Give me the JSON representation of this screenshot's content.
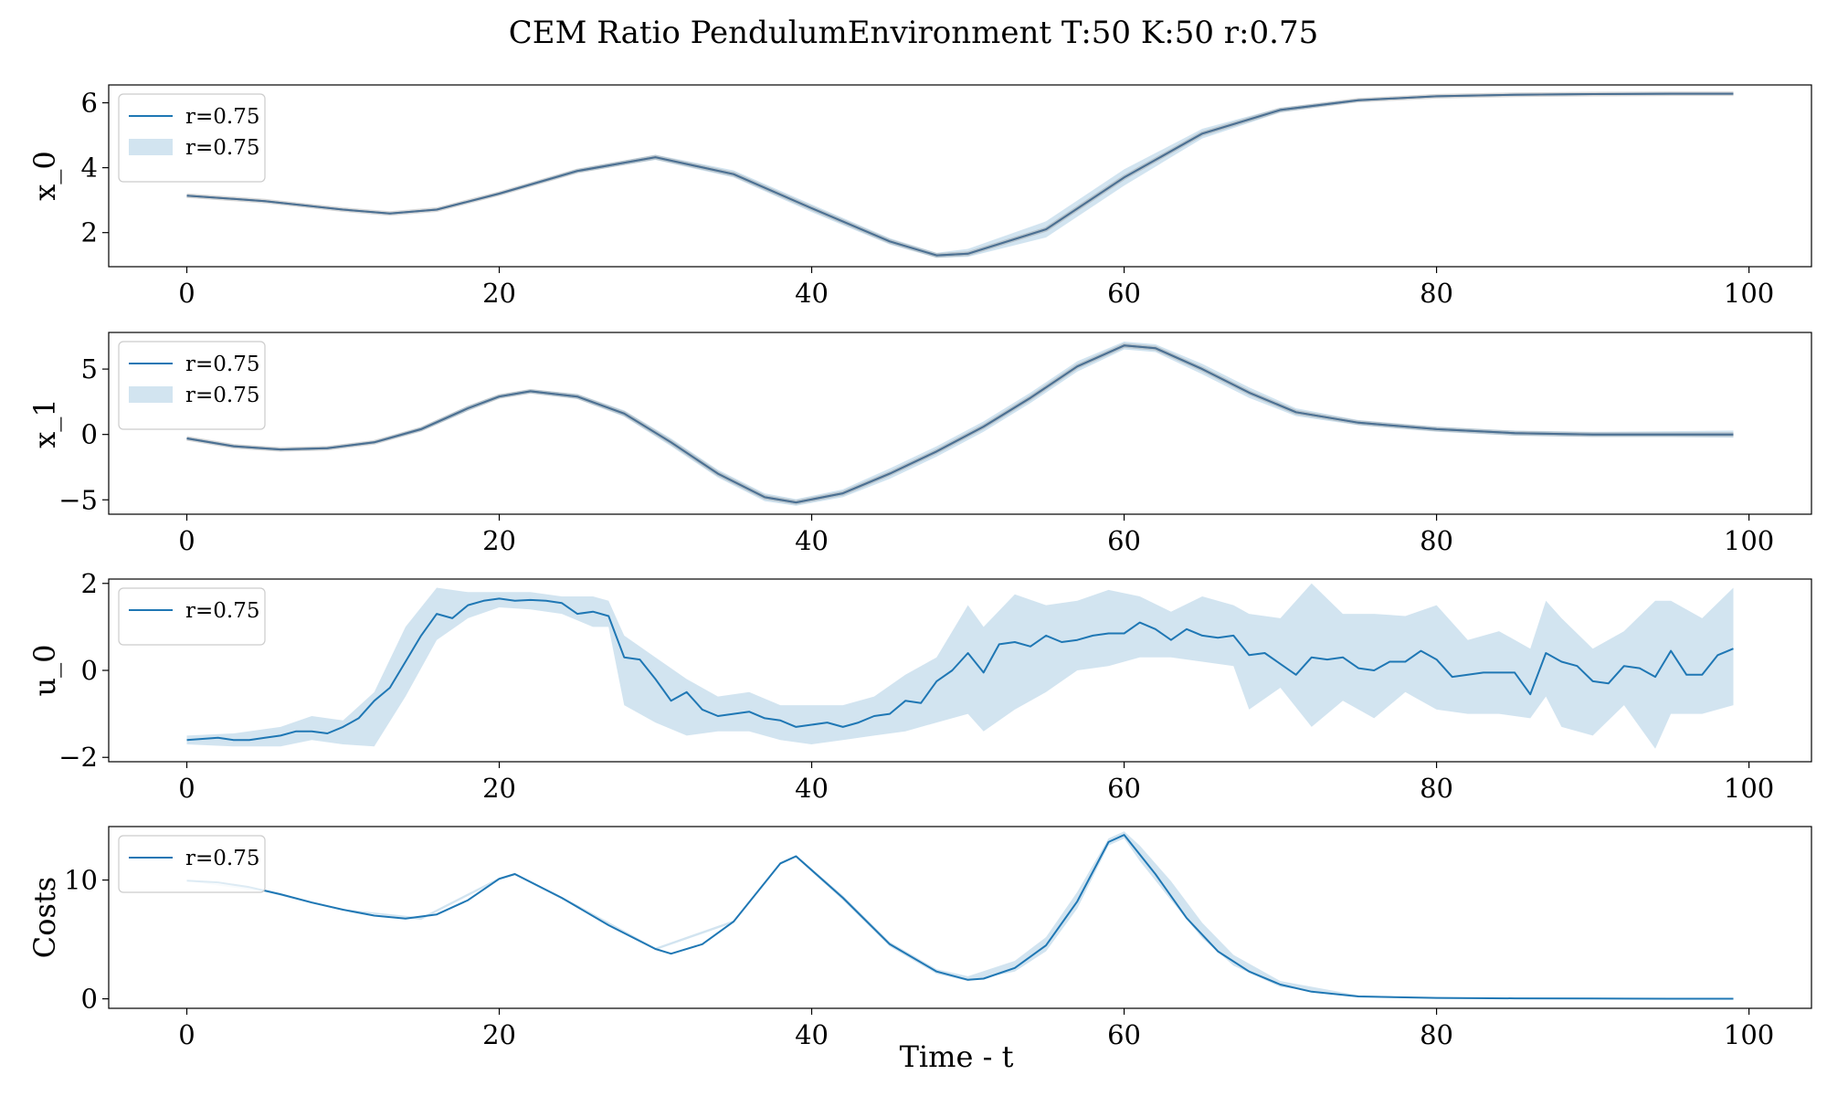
{
  "figure": {
    "title": "CEM Ratio PendulumEnvironment T:50 K:50 r:0.75",
    "xlabel": "Time - t"
  },
  "colors": {
    "line": "#1f77b4",
    "band": "#1f77b4",
    "band_opacity": 0.2,
    "overlay": "#8c8c8c"
  },
  "chart_data": [
    {
      "type": "line",
      "ylabel": "x_0",
      "xlim": [
        -5,
        104
      ],
      "ylim": [
        0.95,
        6.55
      ],
      "xticks": [
        0,
        20,
        40,
        60,
        80,
        100
      ],
      "yticks": [
        2,
        4,
        6
      ],
      "legend": {
        "placement": "top-left",
        "entries": [
          "r=0.75",
          "r=0.75"
        ],
        "kinds": [
          "line",
          "band"
        ]
      },
      "series": [
        {
          "name": "r=0.75",
          "kind": "line",
          "x": [
            0,
            5,
            10,
            13,
            16,
            20,
            25,
            30,
            35,
            40,
            45,
            48,
            50,
            55,
            60,
            65,
            70,
            75,
            80,
            85,
            90,
            95,
            99
          ],
          "values": [
            3.14,
            2.97,
            2.71,
            2.59,
            2.71,
            3.2,
            3.9,
            4.32,
            3.8,
            2.75,
            1.73,
            1.3,
            1.35,
            2.1,
            3.7,
            5.05,
            5.78,
            6.08,
            6.2,
            6.25,
            6.27,
            6.28,
            6.28
          ]
        },
        {
          "name": "r=0.75",
          "kind": "band",
          "x": [
            0,
            5,
            10,
            13,
            16,
            20,
            25,
            30,
            35,
            40,
            45,
            48,
            50,
            55,
            60,
            65,
            70,
            75,
            80,
            85,
            90,
            95,
            99
          ],
          "upper": [
            3.16,
            2.99,
            2.73,
            2.61,
            2.74,
            3.24,
            3.96,
            4.4,
            3.92,
            2.87,
            1.83,
            1.38,
            1.5,
            2.35,
            3.95,
            5.2,
            5.85,
            6.12,
            6.22,
            6.26,
            6.28,
            6.29,
            6.29
          ],
          "lower": [
            3.12,
            2.95,
            2.69,
            2.57,
            2.68,
            3.16,
            3.84,
            4.24,
            3.7,
            2.63,
            1.63,
            1.22,
            1.25,
            1.85,
            3.45,
            4.9,
            5.7,
            6.04,
            6.18,
            6.24,
            6.26,
            6.27,
            6.27
          ]
        }
      ]
    },
    {
      "type": "line",
      "ylabel": "x_1",
      "xlim": [
        -5,
        104
      ],
      "ylim": [
        -6.1,
        7.8
      ],
      "xticks": [
        0,
        20,
        40,
        60,
        80,
        100
      ],
      "yticks": [
        -5,
        0,
        5
      ],
      "legend": {
        "placement": "top-left",
        "entries": [
          "r=0.75",
          "r=0.75"
        ],
        "kinds": [
          "line",
          "band"
        ]
      },
      "series": [
        {
          "name": "r=0.75",
          "kind": "line",
          "x": [
            0,
            3,
            6,
            9,
            12,
            15,
            18,
            20,
            22,
            25,
            28,
            31,
            34,
            37,
            39,
            42,
            45,
            48,
            51,
            54,
            57,
            60,
            62,
            65,
            68,
            71,
            75,
            80,
            85,
            90,
            95,
            99
          ],
          "values": [
            -0.3,
            -0.9,
            -1.15,
            -1.05,
            -0.6,
            0.4,
            2.0,
            2.9,
            3.3,
            2.9,
            1.6,
            -0.6,
            -3.0,
            -4.8,
            -5.2,
            -4.5,
            -3.0,
            -1.3,
            0.6,
            2.8,
            5.2,
            6.8,
            6.6,
            5.0,
            3.2,
            1.7,
            0.9,
            0.4,
            0.1,
            0.0,
            0.0,
            0.0
          ]
        },
        {
          "name": "r=0.75",
          "kind": "band",
          "x": [
            0,
            3,
            6,
            9,
            12,
            15,
            18,
            20,
            22,
            25,
            28,
            31,
            34,
            37,
            39,
            42,
            45,
            48,
            51,
            54,
            57,
            60,
            62,
            65,
            68,
            71,
            75,
            80,
            85,
            90,
            95,
            99
          ],
          "upper": [
            -0.2,
            -0.8,
            -1.05,
            -0.95,
            -0.5,
            0.55,
            2.2,
            3.05,
            3.45,
            3.1,
            1.85,
            -0.3,
            -2.7,
            -4.5,
            -4.95,
            -4.2,
            -2.6,
            -0.9,
            1.0,
            3.2,
            5.6,
            7.1,
            6.9,
            5.4,
            3.6,
            2.0,
            1.1,
            0.6,
            0.3,
            0.2,
            0.25,
            0.3
          ],
          "lower": [
            -0.4,
            -1.0,
            -1.25,
            -1.15,
            -0.7,
            0.25,
            1.8,
            2.75,
            3.15,
            2.7,
            1.35,
            -0.9,
            -3.3,
            -5.1,
            -5.45,
            -4.8,
            -3.4,
            -1.7,
            0.2,
            2.4,
            4.8,
            6.5,
            6.3,
            4.6,
            2.8,
            1.4,
            0.7,
            0.2,
            -0.1,
            -0.2,
            -0.2,
            -0.25
          ]
        }
      ]
    },
    {
      "type": "line",
      "ylabel": "u_0",
      "xlim": [
        -5,
        104
      ],
      "ylim": [
        -2.1,
        2.1
      ],
      "xticks": [
        0,
        20,
        40,
        60,
        80,
        100
      ],
      "yticks": [
        -2,
        0,
        2
      ],
      "legend": {
        "placement": "top-left",
        "entries": [
          "r=0.75"
        ],
        "kinds": [
          "line"
        ]
      },
      "series": [
        {
          "name": "r=0.75",
          "kind": "line",
          "x": [
            0,
            2,
            3,
            4,
            5,
            6,
            7,
            8,
            9,
            10,
            11,
            12,
            13,
            14,
            15,
            16,
            17,
            18,
            19,
            20,
            21,
            22,
            23,
            24,
            25,
            26,
            27,
            28,
            29,
            30,
            31,
            32,
            33,
            34,
            35,
            36,
            37,
            38,
            39,
            40,
            41,
            42,
            43,
            44,
            45,
            46,
            47,
            48,
            49,
            50,
            51,
            52,
            53,
            54,
            55,
            56,
            57,
            58,
            59,
            60,
            61,
            62,
            63,
            64,
            65,
            66,
            67,
            68,
            69,
            70,
            71,
            72,
            73,
            74,
            75,
            76,
            77,
            78,
            79,
            80,
            81,
            82,
            83,
            84,
            85,
            86,
            87,
            88,
            89,
            90,
            91,
            92,
            93,
            94,
            95,
            96,
            97,
            98,
            99
          ],
          "values": [
            -1.6,
            -1.55,
            -1.6,
            -1.6,
            -1.55,
            -1.5,
            -1.4,
            -1.4,
            -1.45,
            -1.3,
            -1.1,
            -0.7,
            -0.4,
            0.2,
            0.8,
            1.3,
            1.2,
            1.5,
            1.6,
            1.65,
            1.6,
            1.62,
            1.6,
            1.55,
            1.3,
            1.35,
            1.25,
            0.3,
            0.25,
            -0.2,
            -0.7,
            -0.5,
            -0.9,
            -1.05,
            -1.0,
            -0.95,
            -1.1,
            -1.15,
            -1.3,
            -1.25,
            -1.2,
            -1.3,
            -1.2,
            -1.05,
            -1.0,
            -0.7,
            -0.75,
            -0.25,
            0.0,
            0.4,
            -0.05,
            0.6,
            0.65,
            0.55,
            0.8,
            0.65,
            0.7,
            0.8,
            0.85,
            0.85,
            1.1,
            0.95,
            0.7,
            0.95,
            0.8,
            0.75,
            0.8,
            0.35,
            0.4,
            0.15,
            -0.1,
            0.3,
            0.25,
            0.3,
            0.05,
            0.0,
            0.2,
            0.2,
            0.45,
            0.25,
            -0.15,
            -0.1,
            -0.05,
            -0.05,
            -0.05,
            -0.55,
            0.4,
            0.2,
            0.1,
            -0.25,
            -0.3,
            0.1,
            0.05,
            -0.15,
            0.45,
            -0.1,
            -0.1,
            0.35,
            0.5
          ]
        },
        {
          "name": "r=0.75",
          "kind": "band",
          "x": [
            0,
            3,
            6,
            8,
            10,
            12,
            14,
            16,
            18,
            20,
            22,
            24,
            26,
            27,
            28,
            30,
            32,
            34,
            36,
            38,
            40,
            42,
            44,
            46,
            48,
            50,
            51,
            53,
            55,
            57,
            59,
            61,
            63,
            65,
            67,
            68,
            70,
            72,
            74,
            76,
            78,
            80,
            82,
            84,
            86,
            87,
            88,
            90,
            92,
            94,
            95,
            97,
            99
          ],
          "upper": [
            -1.5,
            -1.45,
            -1.3,
            -1.05,
            -1.15,
            -0.5,
            1.0,
            1.9,
            1.8,
            1.8,
            1.8,
            1.7,
            1.7,
            1.6,
            0.8,
            0.3,
            -0.2,
            -0.6,
            -0.5,
            -0.8,
            -0.8,
            -0.8,
            -0.6,
            -0.1,
            0.3,
            1.5,
            1.0,
            1.75,
            1.5,
            1.6,
            1.85,
            1.7,
            1.35,
            1.7,
            1.5,
            1.3,
            1.2,
            2.0,
            1.3,
            1.3,
            1.25,
            1.5,
            0.7,
            0.9,
            0.5,
            1.6,
            1.2,
            0.5,
            0.9,
            1.6,
            1.6,
            1.2,
            1.9
          ],
          "lower": [
            -1.7,
            -1.75,
            -1.75,
            -1.6,
            -1.7,
            -1.75,
            -0.6,
            0.7,
            1.2,
            1.45,
            1.4,
            1.3,
            1.0,
            1.0,
            -0.8,
            -1.2,
            -1.5,
            -1.4,
            -1.4,
            -1.6,
            -1.7,
            -1.6,
            -1.5,
            -1.4,
            -1.2,
            -1.0,
            -1.4,
            -0.9,
            -0.5,
            0.0,
            0.1,
            0.3,
            0.3,
            0.2,
            0.1,
            -0.9,
            -0.4,
            -1.3,
            -0.7,
            -1.1,
            -0.5,
            -0.9,
            -1.0,
            -1.0,
            -1.1,
            -0.6,
            -1.3,
            -1.5,
            -0.8,
            -1.8,
            -1.0,
            -1.0,
            -0.8
          ]
        }
      ]
    },
    {
      "type": "line",
      "ylabel": "Costs",
      "xlim": [
        -5,
        104
      ],
      "ylim": [
        -0.8,
        14.5
      ],
      "xticks": [
        0,
        20,
        40,
        60,
        80,
        100
      ],
      "yticks": [
        0,
        10
      ],
      "legend": {
        "placement": "top-left",
        "entries": [
          "r=0.75"
        ],
        "kinds": [
          "line"
        ]
      },
      "series": [
        {
          "name": "r=0.75",
          "kind": "line",
          "x": [
            0,
            2,
            4,
            6,
            8,
            10,
            12,
            14,
            16,
            18,
            20,
            21,
            24,
            27,
            30,
            31,
            33,
            35,
            38,
            39,
            42,
            45,
            48,
            50,
            51,
            53,
            55,
            57,
            59,
            60,
            62,
            64,
            66,
            68,
            70,
            72,
            75,
            80,
            85,
            90,
            95,
            99
          ],
          "values": [
            9.95,
            9.8,
            9.4,
            8.8,
            8.1,
            7.5,
            7.0,
            6.75,
            7.1,
            8.3,
            10.1,
            10.5,
            8.5,
            6.2,
            4.2,
            3.8,
            4.6,
            6.5,
            11.4,
            12.0,
            8.5,
            4.6,
            2.3,
            1.6,
            1.7,
            2.6,
            4.5,
            8.2,
            13.2,
            13.8,
            10.5,
            6.8,
            4.0,
            2.3,
            1.2,
            0.6,
            0.2,
            0.08,
            0.04,
            0.02,
            0.01,
            0.01
          ]
        },
        {
          "name": "r=0.75",
          "kind": "band",
          "x": [
            0,
            5,
            10,
            15,
            20,
            21,
            25,
            30,
            35,
            38,
            39,
            42,
            45,
            48,
            50,
            53,
            55,
            57,
            59,
            60,
            61,
            63,
            65,
            67,
            70,
            75,
            80,
            90,
            99
          ],
          "upper": [
            10.0,
            9.2,
            7.55,
            6.85,
            10.2,
            10.6,
            7.9,
            4.3,
            6.6,
            11.5,
            12.1,
            8.7,
            4.8,
            2.5,
            1.9,
            3.2,
            5.2,
            9.0,
            13.5,
            14.1,
            12.9,
            9.9,
            6.4,
            3.7,
            1.5,
            0.3,
            0.1,
            0.05,
            0.02
          ],
          "lower": [
            9.9,
            9.0,
            7.45,
            6.65,
            10.0,
            10.4,
            7.7,
            4.1,
            6.4,
            11.3,
            11.9,
            8.3,
            4.4,
            2.1,
            1.5,
            2.3,
            4.0,
            7.6,
            12.9,
            13.5,
            11.6,
            8.3,
            5.1,
            2.8,
            1.0,
            0.15,
            0.06,
            0.01,
            0.0
          ]
        }
      ]
    }
  ]
}
